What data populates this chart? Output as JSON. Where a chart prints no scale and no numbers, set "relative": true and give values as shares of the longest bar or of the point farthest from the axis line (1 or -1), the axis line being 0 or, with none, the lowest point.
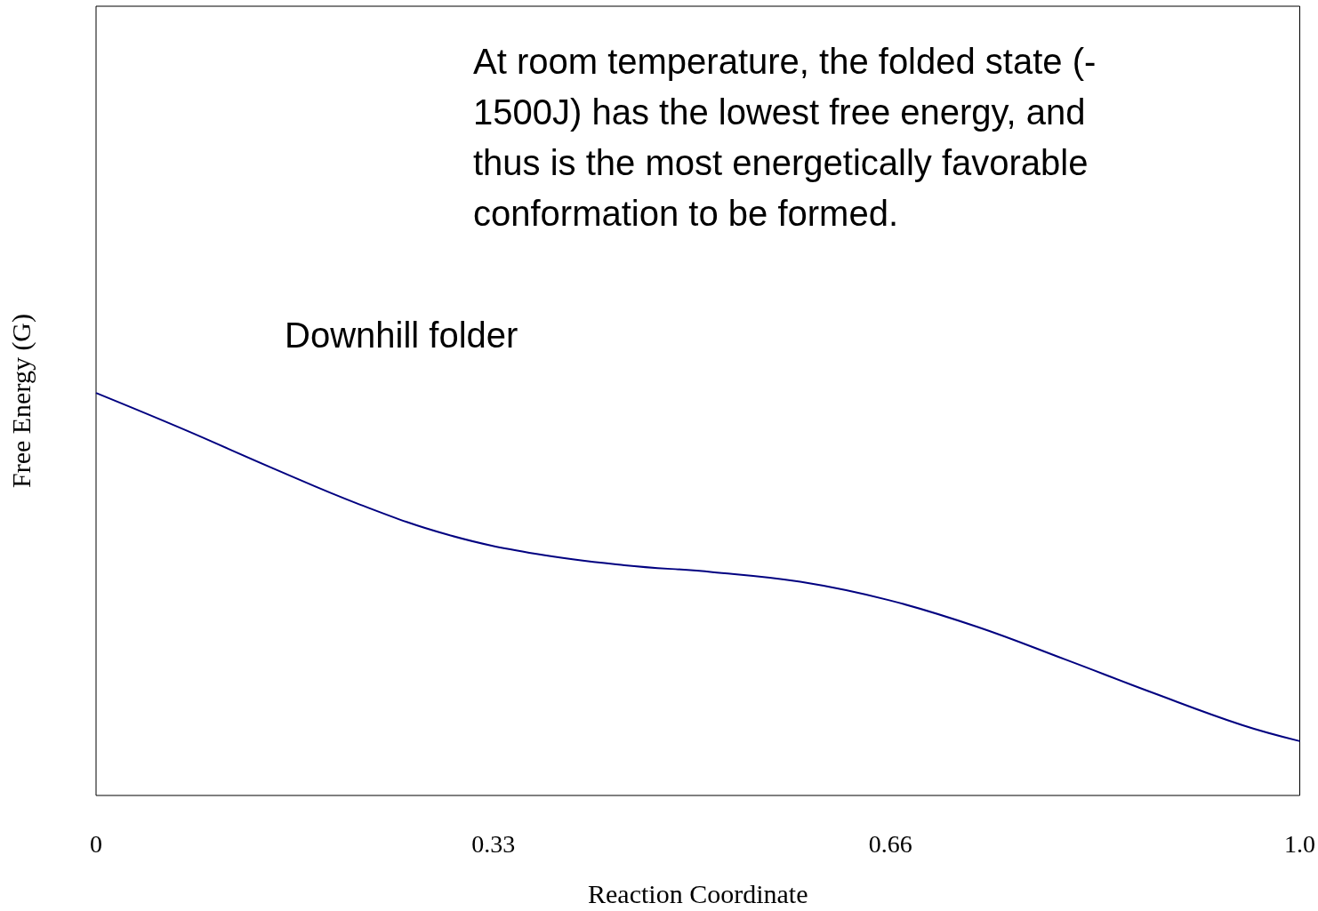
{
  "chart_data": {
    "type": "line",
    "xlabel": "Reaction Coordinate",
    "ylabel": "Free Energy (G)",
    "relative": true,
    "marker": "none",
    "annotations": [
      "At room temperature, the folded state (-\n1500J) has the lowest free energy, and\nthus is the most energetically favorable\nconformation to be formed.",
      "Downhill folder"
    ],
    "xlim": [
      0,
      1
    ],
    "xticks": [
      0,
      0.33,
      0.66,
      {
        "value": 1,
        "label": "1.0"
      }
    ],
    "series": [
      {
        "color": "#000080",
        "x": [
          0,
          0.0725,
          0.146,
          0.219,
          0.292,
          0.366,
          0.439,
          0.512,
          0.585,
          0.659,
          0.732,
          0.805,
          0.878,
          0.952,
          1
        ],
        "values": [
          1,
          0.91,
          0.814,
          0.723,
          0.648,
          0.6,
          0.572,
          0.555,
          0.531,
          0.485,
          0.419,
          0.338,
          0.255,
          0.175,
          0.135
        ]
      }
    ]
  }
}
